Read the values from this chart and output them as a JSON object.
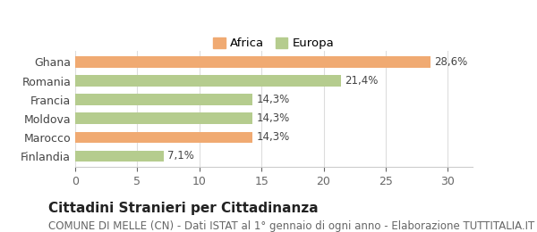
{
  "categories": [
    "Ghana",
    "Romania",
    "Francia",
    "Moldova",
    "Marocco",
    "Finlandia"
  ],
  "values": [
    28.6,
    21.4,
    14.3,
    14.3,
    14.3,
    7.1
  ],
  "labels": [
    "28,6%",
    "21,4%",
    "14,3%",
    "14,3%",
    "14,3%",
    "7,1%"
  ],
  "colors": [
    "#f0aa72",
    "#b5cc8e",
    "#b5cc8e",
    "#b5cc8e",
    "#f0aa72",
    "#b5cc8e"
  ],
  "legend_labels": [
    "Africa",
    "Europa"
  ],
  "legend_colors": [
    "#f0aa72",
    "#b5cc8e"
  ],
  "xlim": [
    0,
    32
  ],
  "xticks": [
    0,
    5,
    10,
    15,
    20,
    25,
    30
  ],
  "title": "Cittadini Stranieri per Cittadinanza",
  "subtitle": "COMUNE DI MELLE (CN) - Dati ISTAT al 1° gennaio di ogni anno - Elaborazione TUTTITALIA.IT",
  "title_fontsize": 11,
  "subtitle_fontsize": 8.5,
  "bar_label_fontsize": 8.5,
  "tick_fontsize": 9,
  "background_color": "#ffffff"
}
